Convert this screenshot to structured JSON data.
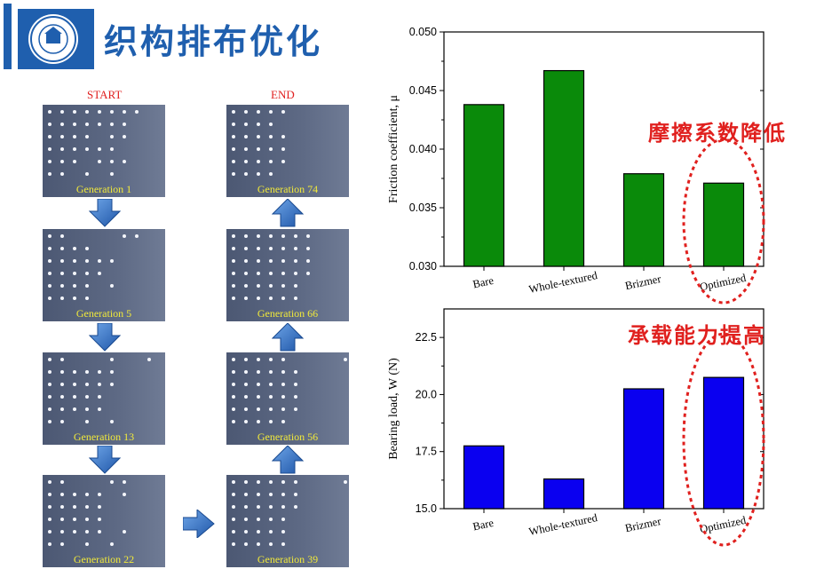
{
  "header": {
    "title": "织构排布优化",
    "logo": "university-seal-logo",
    "accent_color": "#1f5fae"
  },
  "evolution": {
    "start_label": "START",
    "end_label": "END",
    "left_column": [
      {
        "label": "Generation 1"
      },
      {
        "label": "Generation 5"
      },
      {
        "label": "Generation 13"
      },
      {
        "label": "Generation 22"
      }
    ],
    "right_column": [
      {
        "label": "Generation 74"
      },
      {
        "label": "Generation 66"
      },
      {
        "label": "Generation 56"
      },
      {
        "label": "Generation 39"
      }
    ],
    "arrow_icon": "blue-3d-arrow-icon"
  },
  "annotations": {
    "friction": "摩擦系数降低",
    "load": "承载能力提高",
    "highlight_color": "#e0201e"
  },
  "chart_data": [
    {
      "type": "bar",
      "categories": [
        "Bare",
        "Whole-textured",
        "Brizmer",
        "Optimized"
      ],
      "values": [
        0.0438,
        0.0467,
        0.0379,
        0.0371
      ],
      "ylabel": "Friction coefficient, μ",
      "ylim": [
        0.03,
        0.05
      ],
      "yticks": [
        "0.030",
        "0.035",
        "0.040",
        "0.045",
        "0.050"
      ],
      "ytick_values": [
        0.03,
        0.035,
        0.04,
        0.045,
        0.05
      ],
      "color": "#0a8a0a",
      "highlight": "Optimized"
    },
    {
      "type": "bar",
      "categories": [
        "Bare",
        "Whole-textured",
        "Brizmer",
        "Optimized"
      ],
      "values": [
        17.75,
        16.3,
        20.25,
        20.75
      ],
      "ylabel": "Bearing load, W (N)",
      "ylim": [
        15.0,
        23.75
      ],
      "yticks": [
        "15.0",
        "17.5",
        "20.0",
        "22.5"
      ],
      "ytick_values": [
        15.0,
        17.5,
        20.0,
        22.5
      ],
      "color": "#0a00f0",
      "highlight": "Optimized"
    }
  ]
}
